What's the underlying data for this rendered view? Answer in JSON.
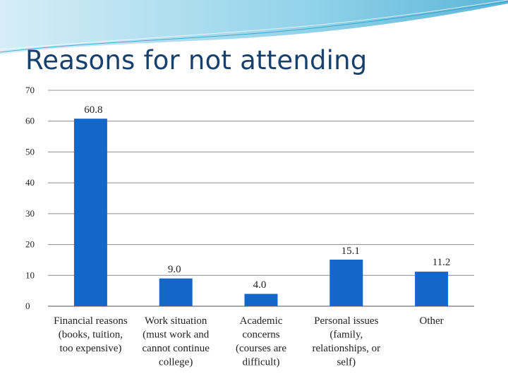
{
  "slide": {
    "title": "Reasons for not attending"
  },
  "colors": {
    "bar": "#1466c8",
    "grid": "#8c8c8c",
    "title": "#17406d",
    "header_wave": "#5bb8d8"
  },
  "chart_data": {
    "type": "bar",
    "title": "Reasons for not attending",
    "xlabel": "",
    "ylabel": "",
    "ylim": [
      0,
      70
    ],
    "yticks": [
      0,
      10,
      20,
      30,
      40,
      50,
      60,
      70
    ],
    "grid": true,
    "categories": [
      [
        "Financial reasons",
        "(books, tuition,",
        "too expensive)"
      ],
      [
        "Work situation",
        "(must work and",
        "cannot continue",
        "college)"
      ],
      [
        "Academic",
        "concerns",
        "(courses are",
        "difficult)"
      ],
      [
        "Personal issues",
        "(family,",
        "relationships, or",
        "self)"
      ],
      [
        "Other"
      ]
    ],
    "values": [
      60.8,
      9.0,
      4.0,
      15.1,
      11.2
    ],
    "data_labels": [
      "60.8",
      "9.0",
      "4.0",
      "15.1",
      "11.2"
    ]
  }
}
